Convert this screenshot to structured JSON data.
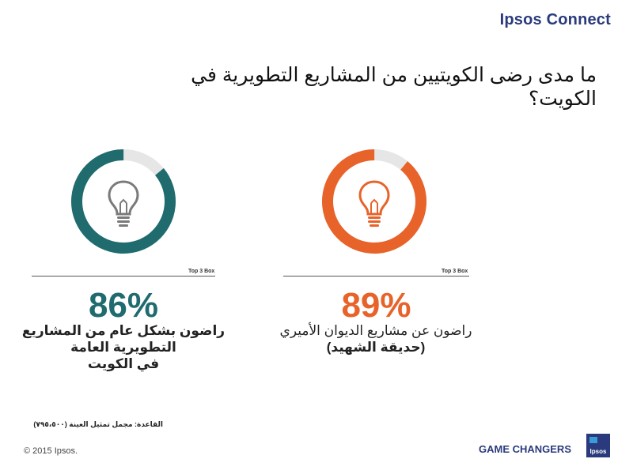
{
  "brand": "Ipsos Connect",
  "title": "ما مدى رضى الكويتيين من المشاريع التطويرية في الكويت؟",
  "chart_data": [
    {
      "type": "pie",
      "chart_style": "donut",
      "box_label": "Top 3 Box",
      "value": 86,
      "value_label": "86%",
      "caption_line1": "راضون بشكل عام من المشاريع التطويرية العامة",
      "caption_line2": "في الكويت",
      "color": "#1f6b6e",
      "track_color": "#e6e6e6",
      "icon": "lightbulb-icon",
      "icon_color": "#7a7a7a"
    },
    {
      "type": "pie",
      "chart_style": "donut",
      "box_label": "Top 3 Box",
      "value": 89,
      "value_label": "89%",
      "caption_line1": "راضون عن مشاريع الديوان الأميري",
      "caption_line2": "(حديقة الشهيد)",
      "color": "#e8632a",
      "track_color": "#e6e6e6",
      "icon": "lightbulb-icon",
      "icon_color": "#e8632a"
    }
  ],
  "base_note": "القاعدة: مجمل تمثيل العينة (٧٩٥،٥٠٠)",
  "copyright": "© 2015 Ipsos.",
  "tagline": "GAME CHANGERS",
  "logo_text": "Ipsos",
  "colors": {
    "brand_blue": "#2a3a7c"
  }
}
